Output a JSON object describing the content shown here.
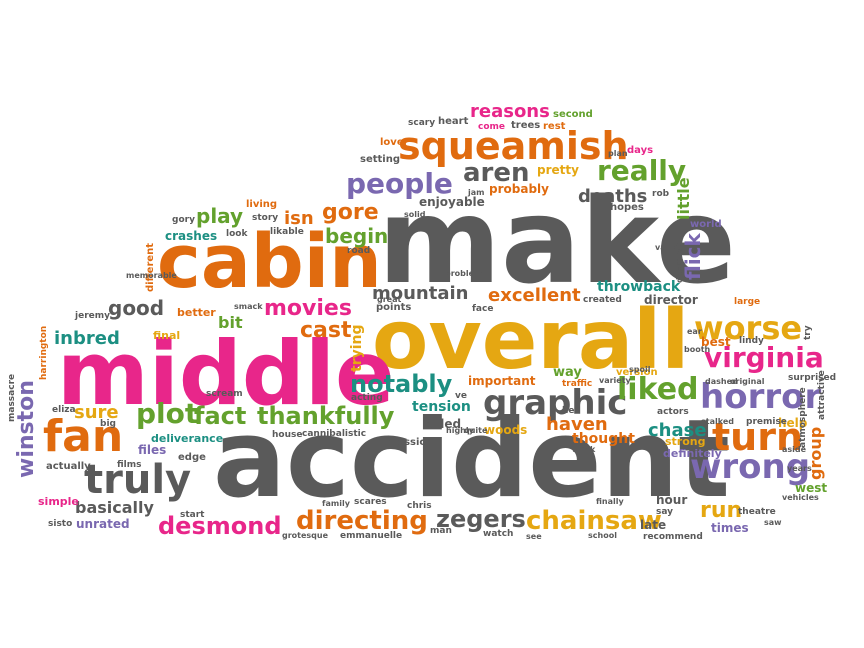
{
  "colors": {
    "gray": "#5a5a5a",
    "orange": "#e06b0f",
    "pink": "#e8268a",
    "gold": "#e5a712",
    "purple": "#7a68b0",
    "green": "#63a12d",
    "teal": "#1c8f82"
  },
  "words": [
    {
      "text": "make",
      "color": "gray"
    },
    {
      "text": "accident",
      "color": "gray"
    },
    {
      "text": "overall",
      "color": "gold"
    },
    {
      "text": "middle",
      "color": "pink"
    },
    {
      "text": "cabin",
      "color": "orange"
    },
    {
      "text": "squeamish",
      "color": "orange"
    },
    {
      "text": "horror",
      "color": "purple"
    },
    {
      "text": "truly",
      "color": "gray"
    },
    {
      "text": "graphic",
      "color": "gray"
    },
    {
      "text": "fan",
      "color": "orange"
    },
    {
      "text": "turn",
      "color": "orange"
    },
    {
      "text": "wrong",
      "color": "purple"
    },
    {
      "text": "worse",
      "color": "gold"
    },
    {
      "text": "virginia",
      "color": "pink"
    },
    {
      "text": "liked",
      "color": "green"
    },
    {
      "text": "people",
      "color": "purple"
    },
    {
      "text": "really",
      "color": "green"
    },
    {
      "text": "aren",
      "color": "gray"
    },
    {
      "text": "chainsaw",
      "color": "gold"
    },
    {
      "text": "directing",
      "color": "orange"
    },
    {
      "text": "desmond",
      "color": "pink"
    },
    {
      "text": "zegers",
      "color": "gray"
    },
    {
      "text": "thankfully",
      "color": "green"
    },
    {
      "text": "plot",
      "color": "green"
    },
    {
      "text": "fact",
      "color": "green"
    },
    {
      "text": "notably",
      "color": "teal"
    },
    {
      "text": "movies",
      "color": "pink"
    },
    {
      "text": "cast",
      "color": "orange"
    },
    {
      "text": "gore",
      "color": "orange"
    },
    {
      "text": "begin",
      "color": "green"
    },
    {
      "text": "play",
      "color": "green"
    },
    {
      "text": "isn",
      "color": "orange"
    },
    {
      "text": "good",
      "color": "gray"
    },
    {
      "text": "mountain",
      "color": "gray"
    },
    {
      "text": "excellent",
      "color": "orange"
    },
    {
      "text": "reasons",
      "color": "pink"
    },
    {
      "text": "deaths",
      "color": "gray"
    },
    {
      "text": "flick",
      "color": "purple"
    },
    {
      "text": "little",
      "color": "green"
    },
    {
      "text": "winston",
      "color": "purple"
    },
    {
      "text": "inbred",
      "color": "teal"
    },
    {
      "text": "sure",
      "color": "gold"
    },
    {
      "text": "basically",
      "color": "gray"
    },
    {
      "text": "run",
      "color": "gold"
    },
    {
      "text": "chase",
      "color": "teal"
    },
    {
      "text": "haven",
      "color": "orange"
    },
    {
      "text": "tension",
      "color": "teal"
    },
    {
      "text": "killed",
      "color": "gray"
    },
    {
      "text": "thought",
      "color": "orange"
    },
    {
      "text": "woods",
      "color": "gold"
    },
    {
      "text": "group",
      "color": "orange"
    },
    {
      "text": "bit",
      "color": "green"
    },
    {
      "text": "crashes",
      "color": "teal"
    },
    {
      "text": "trying",
      "color": "gold"
    },
    {
      "text": "throwback",
      "color": "teal"
    },
    {
      "text": "director",
      "color": "gray"
    },
    {
      "text": "probably",
      "color": "orange"
    },
    {
      "text": "enjoyable",
      "color": "gray"
    },
    {
      "text": "pretty",
      "color": "gold"
    },
    {
      "text": "important",
      "color": "orange"
    },
    {
      "text": "way",
      "color": "green"
    },
    {
      "text": "version",
      "color": "gold"
    },
    {
      "text": "best",
      "color": "orange"
    },
    {
      "text": "help",
      "color": "gold"
    },
    {
      "text": "west",
      "color": "green"
    },
    {
      "text": "hour",
      "color": "gray"
    },
    {
      "text": "late",
      "color": "gray"
    },
    {
      "text": "times",
      "color": "purple"
    },
    {
      "text": "files",
      "color": "purple"
    },
    {
      "text": "unrated",
      "color": "purple"
    },
    {
      "text": "simple",
      "color": "pink"
    },
    {
      "text": "actually",
      "color": "gray"
    },
    {
      "text": "edge",
      "color": "gray"
    },
    {
      "text": "classic",
      "color": "gray"
    },
    {
      "text": "deliverance",
      "color": "teal"
    },
    {
      "text": "definitely",
      "color": "purple"
    },
    {
      "text": "strong",
      "color": "gold"
    },
    {
      "text": "better",
      "color": "orange"
    },
    {
      "text": "final",
      "color": "gold"
    },
    {
      "text": "points",
      "color": "gray"
    },
    {
      "text": "days",
      "color": "pink"
    },
    {
      "text": "hopes",
      "color": "gray"
    },
    {
      "text": "second",
      "color": "green"
    },
    {
      "text": "trees",
      "color": "gray"
    },
    {
      "text": "rest",
      "color": "orange"
    },
    {
      "text": "heart",
      "color": "gray"
    },
    {
      "text": "scary",
      "color": "gray"
    },
    {
      "text": "love",
      "color": "orange"
    },
    {
      "text": "setting",
      "color": "gray"
    },
    {
      "text": "come",
      "color": "pink"
    },
    {
      "text": "living",
      "color": "orange"
    },
    {
      "text": "story",
      "color": "gray"
    },
    {
      "text": "likable",
      "color": "gray"
    },
    {
      "text": "look",
      "color": "gray"
    },
    {
      "text": "road",
      "color": "gray"
    },
    {
      "text": "gory",
      "color": "gray"
    },
    {
      "text": "different",
      "color": "orange"
    },
    {
      "text": "memorable",
      "color": "gray"
    },
    {
      "text": "jeremy",
      "color": "gray"
    },
    {
      "text": "harrington",
      "color": "orange"
    },
    {
      "text": "massacre",
      "color": "gray"
    },
    {
      "text": "eliza",
      "color": "gray"
    },
    {
      "text": "big",
      "color": "gray"
    },
    {
      "text": "scream",
      "color": "gray"
    },
    {
      "text": "start",
      "color": "gray"
    },
    {
      "text": "films",
      "color": "gray"
    },
    {
      "text": "sisto",
      "color": "gray"
    },
    {
      "text": "hell",
      "color": "gray"
    },
    {
      "text": "acting",
      "color": "gray"
    },
    {
      "text": "house",
      "color": "gray"
    },
    {
      "text": "cannibalistic",
      "color": "gray"
    },
    {
      "text": "scares",
      "color": "gray"
    },
    {
      "text": "family",
      "color": "gray"
    },
    {
      "text": "chris",
      "color": "gray"
    },
    {
      "text": "grotesque",
      "color": "gray"
    },
    {
      "text": "emmanuelle",
      "color": "gray"
    },
    {
      "text": "man",
      "color": "gray"
    },
    {
      "text": "watch",
      "color": "gray"
    },
    {
      "text": "ve",
      "color": "gray"
    },
    {
      "text": "traffic",
      "color": "orange"
    },
    {
      "text": "face",
      "color": "gray"
    },
    {
      "text": "problem",
      "color": "gray"
    },
    {
      "text": "jam",
      "color": "gray"
    },
    {
      "text": "rob",
      "color": "gray"
    },
    {
      "text": "world",
      "color": "purple"
    },
    {
      "text": "value",
      "color": "gray"
    },
    {
      "text": "christi",
      "color": "gray"
    },
    {
      "text": "despite",
      "color": "gray"
    },
    {
      "text": "created",
      "color": "gray"
    },
    {
      "text": "large",
      "color": "orange"
    },
    {
      "text": "lindy",
      "color": "gray"
    },
    {
      "text": "booth",
      "color": "gray"
    },
    {
      "text": "try",
      "color": "gray"
    },
    {
      "text": "surprised",
      "color": "gray"
    },
    {
      "text": "atmosphere",
      "color": "gray"
    },
    {
      "text": "attractive",
      "color": "gray"
    },
    {
      "text": "premise",
      "color": "gray"
    },
    {
      "text": "aside",
      "color": "gray"
    },
    {
      "text": "years",
      "color": "gray"
    },
    {
      "text": "vehicles",
      "color": "gray"
    },
    {
      "text": "theatre",
      "color": "gray"
    },
    {
      "text": "saw",
      "color": "gray"
    },
    {
      "text": "recommend",
      "color": "gray"
    },
    {
      "text": "actors",
      "color": "gray"
    },
    {
      "text": "stalked",
      "color": "gray"
    },
    {
      "text": "dashed",
      "color": "gray"
    },
    {
      "text": "original",
      "color": "gray"
    },
    {
      "text": "variety",
      "color": "gray"
    },
    {
      "text": "say",
      "color": "gray"
    },
    {
      "text": "spoil",
      "color": "gray"
    },
    {
      "text": "ear",
      "color": "gray"
    },
    {
      "text": "finally",
      "color": "gray"
    },
    {
      "text": "school",
      "color": "gray"
    },
    {
      "text": "think",
      "color": "gray"
    },
    {
      "text": "see",
      "color": "gray"
    },
    {
      "text": "great",
      "color": "gray"
    },
    {
      "text": "smack",
      "color": "gray"
    },
    {
      "text": "solid",
      "color": "gray"
    },
    {
      "text": "highly",
      "color": "gray"
    },
    {
      "text": "quite",
      "color": "gray"
    },
    {
      "text": "plan",
      "color": "gray"
    }
  ]
}
